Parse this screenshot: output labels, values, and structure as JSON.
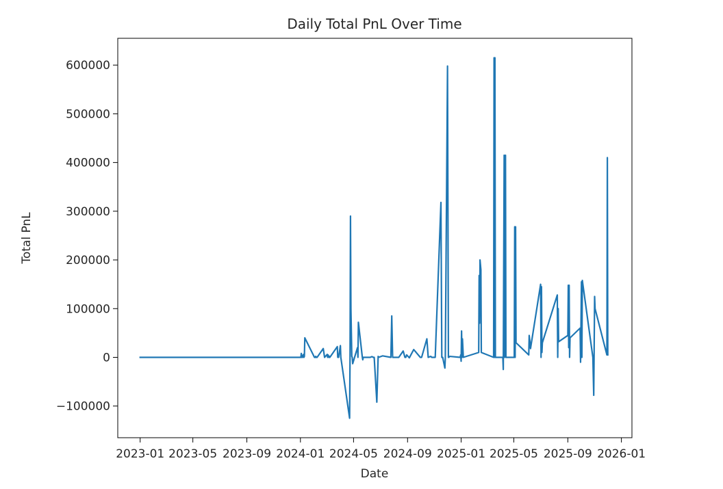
{
  "chart_data": {
    "type": "line",
    "title": "Daily Total PnL Over Time",
    "xlabel": "Date",
    "ylabel": "Total PnL",
    "xlim": [
      "2022-11-11",
      "2026-01-25"
    ],
    "ylim": [
      -165000,
      655000
    ],
    "x_ticks": [
      "2023-01",
      "2023-05",
      "2023-09",
      "2024-01",
      "2024-05",
      "2024-09",
      "2025-01",
      "2025-05",
      "2025-09",
      "2026-01"
    ],
    "y_ticks": [
      -100000,
      0,
      100000,
      200000,
      300000,
      400000,
      500000,
      600000
    ],
    "y_tick_labels": [
      "−100000",
      "0",
      "100000",
      "200000",
      "300000",
      "400000",
      "500000",
      "600000"
    ],
    "grid": false,
    "line_color": "#1f77b4",
    "series": [
      {
        "x": [
          "2023-01-01",
          "2024-01-02",
          "2024-01-03",
          "2024-01-04",
          "2024-01-05",
          "2024-01-06",
          "2024-01-08",
          "2024-01-09",
          "2024-01-10",
          "2024-01-11",
          "2024-02-02",
          "2024-02-04",
          "2024-02-05",
          "2024-02-06",
          "2024-02-08",
          "2024-02-22",
          "2024-02-25",
          "2024-03-02",
          "2024-03-03",
          "2024-03-04",
          "2024-03-06",
          "2024-03-07",
          "2024-03-08",
          "2024-03-25",
          "2024-03-26",
          "2024-03-27",
          "2024-03-28",
          "2024-04-01",
          "2024-04-02",
          "2024-04-22",
          "2024-04-23",
          "2024-04-24",
          "2024-04-25",
          "2024-04-27",
          "2024-04-28",
          "2024-04-29",
          "2024-05-10",
          "2024-05-11",
          "2024-05-12",
          "2024-05-21",
          "2024-05-22",
          "2024-05-23",
          "2024-06-08",
          "2024-06-12",
          "2024-06-15",
          "2024-06-17",
          "2024-06-23",
          "2024-06-26",
          "2024-06-27",
          "2024-07-06",
          "2024-07-25",
          "2024-07-27",
          "2024-07-29",
          "2024-08-12",
          "2024-08-22",
          "2024-08-26",
          "2024-08-28",
          "2024-08-30",
          "2024-09-05",
          "2024-09-15",
          "2024-09-30",
          "2024-10-03",
          "2024-10-15",
          "2024-10-18",
          "2024-10-24",
          "2024-10-26",
          "2024-11-03",
          "2024-11-16",
          "2024-11-18",
          "2024-11-20",
          "2024-11-25",
          "2024-11-26",
          "2024-12-01",
          "2024-12-03",
          "2024-12-04",
          "2024-12-06",
          "2024-12-30",
          "2024-12-31",
          "2025-01-01",
          "2025-01-02",
          "2025-01-03",
          "2025-01-04",
          "2025-01-06",
          "2025-02-10",
          "2025-02-11",
          "2025-02-12",
          "2025-02-13",
          "2025-02-15",
          "2025-02-16",
          "2025-03-16",
          "2025-03-17",
          "2025-03-18",
          "2025-03-19",
          "2025-03-20",
          "2025-03-22",
          "2025-04-06",
          "2025-04-07",
          "2025-04-09",
          "2025-04-10",
          "2025-04-12",
          "2025-04-13",
          "2025-05-02",
          "2025-05-03",
          "2025-05-04",
          "2025-05-05",
          "2025-05-06",
          "2025-06-04",
          "2025-06-05",
          "2025-06-07",
          "2025-06-08",
          "2025-07-01",
          "2025-07-02",
          "2025-07-03",
          "2025-07-04",
          "2025-07-05",
          "2025-08-08",
          "2025-08-09",
          "2025-08-10",
          "2025-08-11",
          "2025-09-01",
          "2025-09-02",
          "2025-09-03",
          "2025-09-04",
          "2025-09-05",
          "2025-09-06",
          "2025-09-29",
          "2025-09-30",
          "2025-10-02",
          "2025-10-03",
          "2025-10-04",
          "2025-10-28",
          "2025-10-30",
          "2025-11-01",
          "2025-11-02",
          "2025-11-29",
          "2025-11-30",
          "2025-12-01"
        ],
        "values": [
          0,
          0,
          8000,
          0,
          4000,
          0,
          6000,
          0,
          2000,
          40000,
          0,
          0,
          2000,
          0,
          0,
          18000,
          0,
          6000,
          0,
          5000,
          0,
          2000,
          0,
          22000,
          0,
          6000,
          0,
          24000,
          0,
          -125000,
          0,
          290000,
          100000,
          2000,
          0,
          -13000,
          20000,
          0,
          72000,
          0,
          -5000,
          0,
          0,
          1500,
          0,
          0,
          -92000,
          2000,
          0,
          3000,
          0,
          85000,
          0,
          0,
          13000,
          0,
          0,
          5000,
          -1000,
          16000,
          0,
          0,
          38000,
          0,
          2000,
          0,
          0,
          318000,
          0,
          0,
          -22000,
          0,
          598000,
          0,
          0,
          2000,
          0,
          5000,
          -8000,
          54000,
          0,
          38000,
          0,
          10000,
          168000,
          70000,
          200000,
          180000,
          10000,
          0,
          615000,
          0,
          615000,
          0,
          0,
          0,
          -25000,
          415000,
          0,
          415000,
          0,
          0,
          268000,
          0,
          268000,
          30000,
          5000,
          45000,
          30000,
          18000,
          150000,
          0,
          145000,
          10000,
          30000,
          128000,
          0,
          100000,
          32000,
          45000,
          148000,
          20000,
          148000,
          0,
          40000,
          60000,
          -10000,
          155000,
          0,
          158000,
          0,
          -78000,
          125000,
          100000,
          5000,
          410000,
          5000
        ]
      }
    ]
  }
}
